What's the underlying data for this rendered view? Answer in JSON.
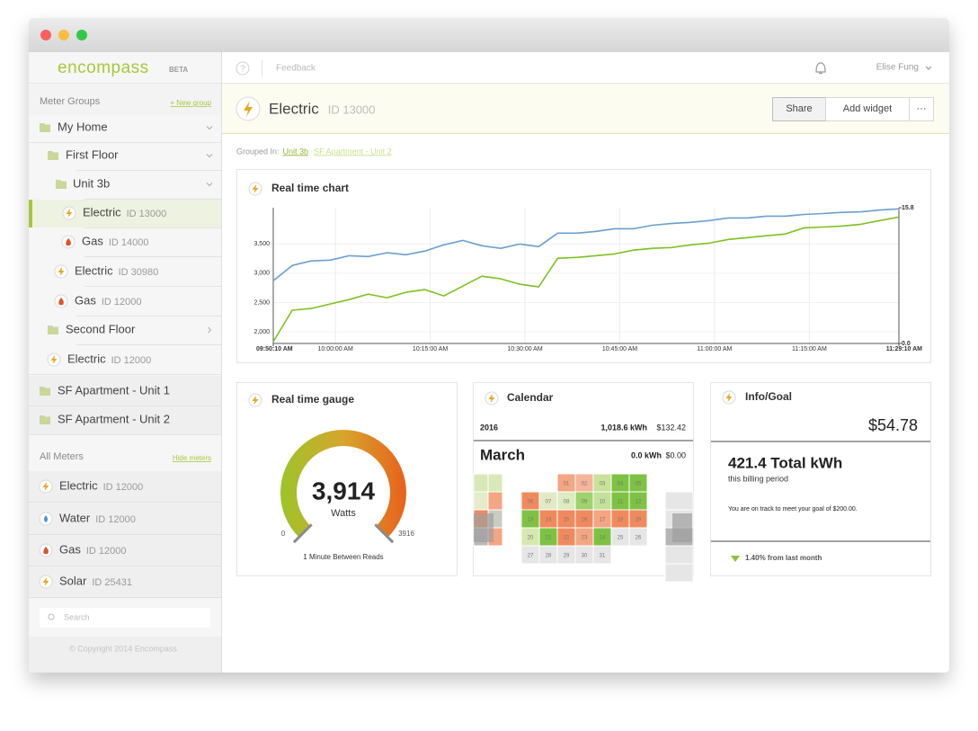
{
  "sidebar": {
    "logo": "encompass",
    "logo_badge": "BETA",
    "meter_groups_label": "Meter Groups",
    "new_group": "+ New group",
    "tree": [
      {
        "label": "My Home"
      },
      {
        "label": "First Floor"
      },
      {
        "label": "Unit 3b"
      },
      {
        "label": "Electric",
        "id": "ID 13000"
      },
      {
        "label": "Gas",
        "id": "ID 14000"
      },
      {
        "label": "Electric",
        "id": "ID 30980"
      },
      {
        "label": "Gas",
        "id": "ID 12000"
      },
      {
        "label": "Second Floor"
      },
      {
        "label": "Electric",
        "id": "ID 12000"
      },
      {
        "label": "SF Apartment - Unit 1"
      },
      {
        "label": "SF Apartment - Unit 2"
      }
    ],
    "all_meters_label": "All Meters",
    "hide_meters": "Hide meters",
    "meters": [
      {
        "label": "Electric",
        "id": "ID 12000"
      },
      {
        "label": "Water",
        "id": "ID 12000"
      },
      {
        "label": "Gas",
        "id": "ID 12000"
      },
      {
        "label": "Solar",
        "id": "ID 25431"
      }
    ],
    "search_placeholder": "Search",
    "copyright": "© Copyright 2014 Encompass"
  },
  "topbar": {
    "help": "?",
    "feedback": "Feedback",
    "user": "Elise Fung"
  },
  "header": {
    "title": "Electric",
    "id": "ID 13000",
    "buttons": [
      "Share",
      "Add widget",
      "···"
    ]
  },
  "grouped_in": {
    "label": "Grouped In:",
    "links": [
      "Unit 3b",
      "SF Apartment - Unit 2"
    ]
  },
  "real_time_chart": {
    "type": "line",
    "title": "Real time chart",
    "grid": true,
    "xlim": [
      0,
      99
    ],
    "xticks": [
      {
        "value": 0,
        "label": "09:50:10 AM"
      },
      {
        "value": 9.833,
        "label": "10:00:00 AM"
      },
      {
        "value": 24.833,
        "label": "10:15:00 AM"
      },
      {
        "value": 39.833,
        "label": "10:30:00 AM"
      },
      {
        "value": 54.833,
        "label": "10:45:00 AM"
      },
      {
        "value": 69.833,
        "label": "11:00:00 AM"
      },
      {
        "value": 84.833,
        "label": "11:15:00 AM"
      },
      {
        "value": 99,
        "label": "11:29:10 AM"
      }
    ],
    "ylim": [
      1800,
      4120
    ],
    "yticks": [
      {
        "value": 2000,
        "label": "2,000"
      },
      {
        "value": 2500,
        "label": "2,500"
      },
      {
        "value": 3000,
        "label": "3,000"
      },
      {
        "value": 3500,
        "label": "3,500"
      }
    ],
    "y2lim": [
      0,
      15.8
    ],
    "y2ticks": [
      {
        "value": 0,
        "label": "0.0"
      },
      15.8
    ],
    "x": [
      0,
      3,
      6,
      9,
      12,
      15,
      18,
      21,
      24,
      27,
      30,
      33,
      36,
      39,
      42,
      45,
      48,
      51,
      54,
      57,
      60,
      63,
      66,
      69,
      72,
      75,
      78,
      81,
      84,
      87,
      90,
      93,
      96,
      99
    ],
    "series": [
      {
        "color": "#6a9fd0",
        "values": [
          2873,
          3133,
          3210,
          3225,
          3300,
          3285,
          3350,
          3317,
          3380,
          3485,
          3560,
          3470,
          3425,
          3500,
          3455,
          3685,
          3685,
          3715,
          3760,
          3760,
          3820,
          3850,
          3870,
          3900,
          3945,
          3945,
          3975,
          3975,
          4005,
          4020,
          4040,
          4050,
          4080,
          4100
        ]
      },
      {
        "color": "#7cc21e",
        "values": [
          1830,
          2368,
          2398,
          2475,
          2550,
          2643,
          2582,
          2674,
          2720,
          2612,
          2780,
          2950,
          2904,
          2812,
          2766,
          3256,
          3270,
          3300,
          3330,
          3395,
          3425,
          3440,
          3485,
          3515,
          3577,
          3608,
          3640,
          3670,
          3776,
          3790,
          3807,
          3838,
          3900,
          3960
        ]
      }
    ]
  },
  "gauge": {
    "title": "Real time gauge",
    "value": 3914,
    "value_label": "3,914",
    "unit": "Watts",
    "min": 0,
    "max": 3916,
    "footer": "1 Minute Between Reads"
  },
  "calendar": {
    "title": "Calendar",
    "year": "2016",
    "year_kwh": "1,018.6 kWh",
    "year_cost": "$132.42",
    "month": "March",
    "month_kwh": "0.0 kWh",
    "month_cost": "$0.00",
    "first_weekday": 2,
    "days": [
      {
        "label": "01",
        "color": "#f4a582"
      },
      {
        "label": "02",
        "color": "#f6b49a"
      },
      {
        "label": "03",
        "color": "#c8e29a"
      },
      {
        "label": "04",
        "color": "#7dc242"
      },
      {
        "label": "05",
        "color": "#7dc242"
      },
      {
        "label": "06",
        "color": "#f08a5d"
      },
      {
        "label": "07",
        "color": "#e2e9c4"
      },
      {
        "label": "08",
        "color": "#dcebc0"
      },
      {
        "label": "09",
        "color": "#9ed26a"
      },
      {
        "label": "10",
        "color": "#c5e09a"
      },
      {
        "label": "11",
        "color": "#7dc242"
      },
      {
        "label": "12",
        "color": "#7dc242"
      },
      {
        "label": "13",
        "color": "#7dc242"
      },
      {
        "label": "14",
        "color": "#f08a5d"
      },
      {
        "label": "15",
        "color": "#f08a5d"
      },
      {
        "label": "16",
        "color": "#f08a5d"
      },
      {
        "label": "17",
        "color": "#f4a582"
      },
      {
        "label": "18",
        "color": "#f08a5d"
      },
      {
        "label": "19",
        "color": "#f08a5d"
      },
      {
        "label": "20",
        "color": "#d6e8b0"
      },
      {
        "label": "21",
        "color": "#7dc242"
      },
      {
        "label": "22",
        "color": "#f08a5d"
      },
      {
        "label": "23",
        "color": "#f4a582"
      },
      {
        "label": "24",
        "color": "#7dc242"
      },
      {
        "label": "25",
        "color": "#e6e6e6"
      },
      {
        "label": "26",
        "color": "#e6e6e6"
      },
      {
        "label": "27",
        "color": "#e6e6e6"
      },
      {
        "label": "28",
        "color": "#e6e6e6"
      },
      {
        "label": "29",
        "color": "#e6e6e6"
      },
      {
        "label": "30",
        "color": "#e6e6e6"
      },
      {
        "label": "31",
        "color": "#e6e6e6"
      }
    ]
  },
  "info_goal": {
    "title": "Info/Goal",
    "amount": "$54.78",
    "total": "421.4 Total kWh",
    "period": "this billing period",
    "message": "You are on track to meet your goal of $200.00.",
    "change": "1.40% from last month"
  }
}
